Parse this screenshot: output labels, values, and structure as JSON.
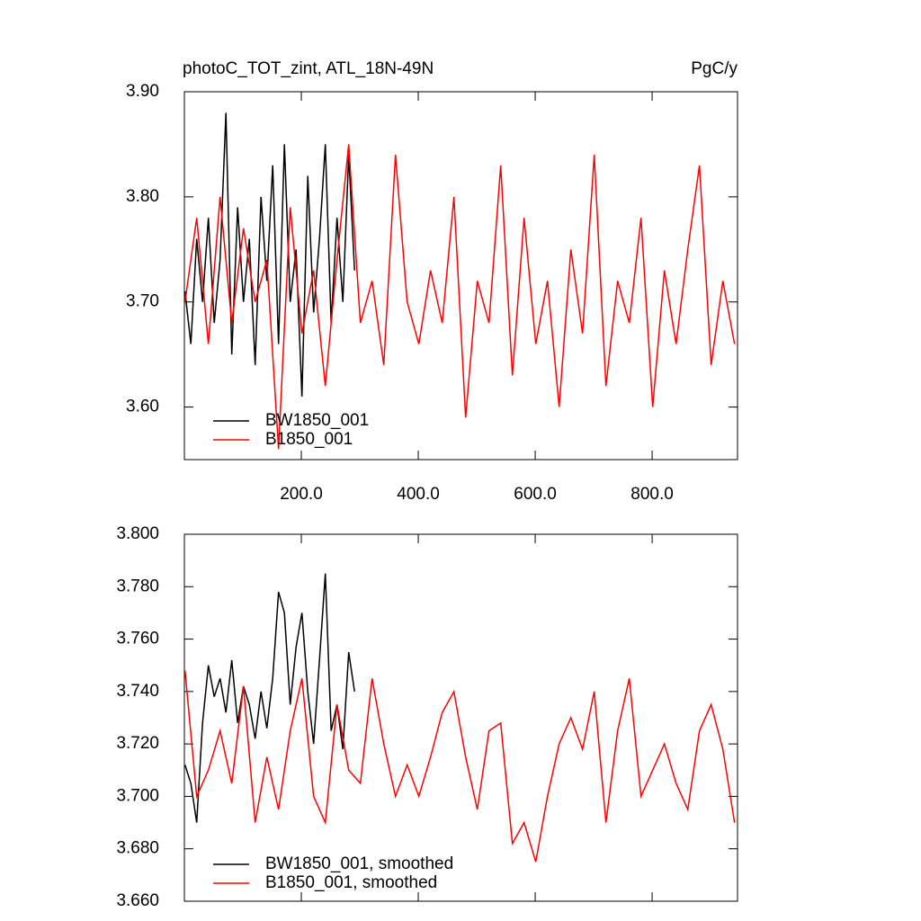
{
  "chart_data": [
    {
      "type": "line",
      "title": "photoC_TOT_zint, ATL_18N-49N",
      "units": "PgC/y",
      "xlim": [
        0,
        946
      ],
      "ylim": [
        3.55,
        3.9
      ],
      "xticks": [
        {
          "value": 200,
          "label": "200.0"
        },
        {
          "value": 400,
          "label": "400.0"
        },
        {
          "value": 600,
          "label": "600.0"
        },
        {
          "value": 800,
          "label": "800.0"
        }
      ],
      "yticks": [
        {
          "value": 3.6,
          "label": "3.60"
        },
        {
          "value": 3.7,
          "label": "3.70"
        },
        {
          "value": 3.8,
          "label": "3.80"
        },
        {
          "value": 3.9,
          "label": "3.90"
        }
      ],
      "series": [
        {
          "name": "BW1850_001",
          "color": "#000000",
          "x": [
            1,
            11,
            21,
            31,
            41,
            51,
            61,
            71,
            81,
            91,
            101,
            111,
            121,
            131,
            141,
            151,
            161,
            171,
            181,
            191,
            201,
            211,
            221,
            231,
            241,
            251,
            261,
            271,
            281,
            291
          ],
          "values": [
            3.71,
            3.66,
            3.76,
            3.7,
            3.78,
            3.68,
            3.74,
            3.88,
            3.65,
            3.79,
            3.7,
            3.76,
            3.64,
            3.8,
            3.72,
            3.83,
            3.66,
            3.85,
            3.7,
            3.75,
            3.61,
            3.82,
            3.69,
            3.76,
            3.85,
            3.68,
            3.78,
            3.7,
            3.84,
            3.73
          ]
        },
        {
          "name": "B1850_001",
          "color": "#ff0000",
          "x": [
            1,
            21,
            41,
            61,
            81,
            101,
            121,
            141,
            161,
            181,
            201,
            221,
            241,
            261,
            281,
            301,
            321,
            341,
            361,
            381,
            401,
            421,
            441,
            461,
            481,
            501,
            521,
            541,
            561,
            581,
            601,
            621,
            641,
            661,
            681,
            701,
            721,
            741,
            761,
            781,
            801,
            821,
            841,
            861,
            881,
            901,
            921,
            941
          ],
          "values": [
            3.7,
            3.78,
            3.66,
            3.8,
            3.68,
            3.77,
            3.7,
            3.74,
            3.56,
            3.79,
            3.67,
            3.73,
            3.62,
            3.74,
            3.85,
            3.68,
            3.72,
            3.64,
            3.84,
            3.7,
            3.66,
            3.73,
            3.68,
            3.8,
            3.59,
            3.72,
            3.68,
            3.83,
            3.63,
            3.78,
            3.66,
            3.72,
            3.6,
            3.75,
            3.67,
            3.84,
            3.62,
            3.72,
            3.68,
            3.78,
            3.6,
            3.73,
            3.66,
            3.75,
            3.83,
            3.64,
            3.72,
            3.66
          ]
        }
      ]
    },
    {
      "type": "line",
      "xlim": [
        0,
        946
      ],
      "ylim": [
        3.66,
        3.8
      ],
      "xticks": [
        200,
        400,
        600,
        800
      ],
      "yticks": [
        {
          "value": 3.66,
          "label": "3.660"
        },
        {
          "value": 3.68,
          "label": "3.680"
        },
        {
          "value": 3.7,
          "label": "3.700"
        },
        {
          "value": 3.72,
          "label": "3.720"
        },
        {
          "value": 3.74,
          "label": "3.740"
        },
        {
          "value": 3.76,
          "label": "3.760"
        },
        {
          "value": 3.78,
          "label": "3.780"
        },
        {
          "value": 3.8,
          "label": "3.800"
        }
      ],
      "series": [
        {
          "name": "BW1850_001, smoothed",
          "color": "#000000",
          "x": [
            1,
            11,
            21,
            31,
            41,
            51,
            61,
            71,
            81,
            91,
            101,
            111,
            121,
            131,
            141,
            151,
            161,
            171,
            181,
            191,
            201,
            211,
            221,
            231,
            241,
            251,
            261,
            271,
            281,
            291
          ],
          "values": [
            3.712,
            3.705,
            3.69,
            3.728,
            3.75,
            3.738,
            3.745,
            3.732,
            3.752,
            3.728,
            3.742,
            3.735,
            3.722,
            3.74,
            3.726,
            3.745,
            3.778,
            3.77,
            3.735,
            3.757,
            3.77,
            3.74,
            3.72,
            3.752,
            3.785,
            3.725,
            3.735,
            3.718,
            3.755,
            3.74
          ]
        },
        {
          "name": "B1850_001, smoothed",
          "color": "#ff0000",
          "x": [
            1,
            21,
            41,
            61,
            81,
            101,
            121,
            141,
            161,
            181,
            201,
            221,
            241,
            261,
            281,
            301,
            321,
            341,
            361,
            381,
            401,
            421,
            441,
            461,
            481,
            501,
            521,
            541,
            561,
            581,
            601,
            621,
            641,
            661,
            681,
            701,
            721,
            741,
            761,
            781,
            801,
            821,
            841,
            861,
            881,
            901,
            921,
            941
          ],
          "values": [
            3.748,
            3.7,
            3.71,
            3.725,
            3.705,
            3.742,
            3.69,
            3.715,
            3.695,
            3.725,
            3.745,
            3.7,
            3.69,
            3.735,
            3.71,
            3.705,
            3.745,
            3.72,
            3.7,
            3.712,
            3.7,
            3.715,
            3.732,
            3.74,
            3.715,
            3.695,
            3.725,
            3.728,
            3.682,
            3.69,
            3.675,
            3.7,
            3.72,
            3.73,
            3.718,
            3.74,
            3.69,
            3.725,
            3.745,
            3.7,
            3.71,
            3.72,
            3.705,
            3.695,
            3.725,
            3.735,
            3.718,
            3.69
          ]
        }
      ]
    }
  ]
}
